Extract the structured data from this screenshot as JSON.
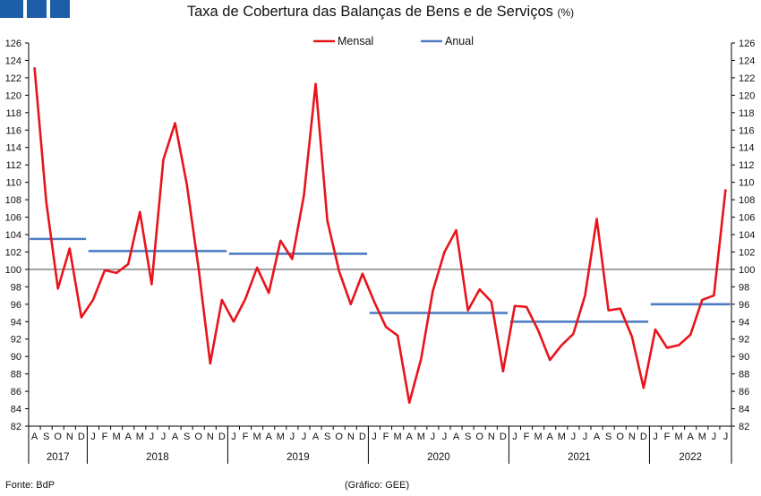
{
  "header": {
    "title": "Taxa de Cobertura das Balanças de Bens e de Serviços",
    "unit": "(%)"
  },
  "footer": {
    "source": "Fonte: BdP",
    "credit": "(Gráfico: GEE)"
  },
  "colors": {
    "mensal": "#e8141c",
    "anual": "#4f7dc2",
    "logo": "#1c5fa8",
    "axis": "#000000"
  },
  "chart_data": {
    "type": "line",
    "title": "Taxa de Cobertura das Balanças de Bens e de Serviços",
    "unit": "(%)",
    "ylim": [
      82,
      126
    ],
    "ytick_step": 2,
    "y_axis_both_sides": true,
    "reference_line": 100,
    "grid": false,
    "legend_position": "top-center",
    "month_labels": [
      "A",
      "S",
      "O",
      "N",
      "D",
      "J",
      "F",
      "M",
      "A",
      "M",
      "J",
      "J",
      "A",
      "S",
      "O",
      "N",
      "D",
      "J",
      "F",
      "M",
      "A",
      "M",
      "J",
      "J",
      "A",
      "S",
      "O",
      "N",
      "D",
      "J",
      "F",
      "M",
      "A",
      "M",
      "J",
      "J",
      "A",
      "S",
      "O",
      "N",
      "D",
      "J",
      "F",
      "M",
      "A",
      "M",
      "J",
      "J",
      "A",
      "S",
      "O",
      "N",
      "D",
      "J",
      "F",
      "M",
      "A",
      "M",
      "J",
      "J"
    ],
    "years": [
      {
        "label": "2017",
        "start": 0,
        "end": 4
      },
      {
        "label": "2018",
        "start": 5,
        "end": 16
      },
      {
        "label": "2019",
        "start": 17,
        "end": 28
      },
      {
        "label": "2020",
        "start": 29,
        "end": 40
      },
      {
        "label": "2021",
        "start": 41,
        "end": 52
      },
      {
        "label": "2022",
        "start": 53,
        "end": 59
      }
    ],
    "series": [
      {
        "name": "Mensal",
        "values": [
          123.2,
          107.8,
          97.8,
          102.4,
          94.5,
          96.5,
          99.9,
          99.6,
          100.6,
          106.6,
          98.3,
          112.6,
          116.8,
          109.8,
          100.2,
          89.2,
          96.5,
          94.0,
          96.6,
          100.2,
          97.3,
          103.3,
          101.2,
          108.5,
          121.3,
          105.6,
          99.8,
          96.0,
          99.5,
          96.3,
          93.4,
          92.4,
          84.7,
          89.7,
          97.5,
          102.0,
          104.5,
          95.3,
          97.7,
          96.3,
          88.3,
          95.8,
          95.7,
          93.0,
          89.6,
          91.3,
          92.6,
          97.0,
          105.8,
          95.3,
          95.5,
          92.3,
          86.4,
          93.1,
          91.0,
          91.3,
          92.5,
          96.5,
          97.0,
          109.2
        ]
      },
      {
        "name": "Anual",
        "segments": [
          {
            "start": 0,
            "end": 4,
            "value": 103.5
          },
          {
            "start": 5,
            "end": 16,
            "value": 102.1
          },
          {
            "start": 17,
            "end": 28,
            "value": 101.8
          },
          {
            "start": 29,
            "end": 40,
            "value": 95.0
          },
          {
            "start": 41,
            "end": 52,
            "value": 94.0
          },
          {
            "start": 53,
            "end": 59,
            "value": 96.0
          }
        ]
      }
    ]
  }
}
